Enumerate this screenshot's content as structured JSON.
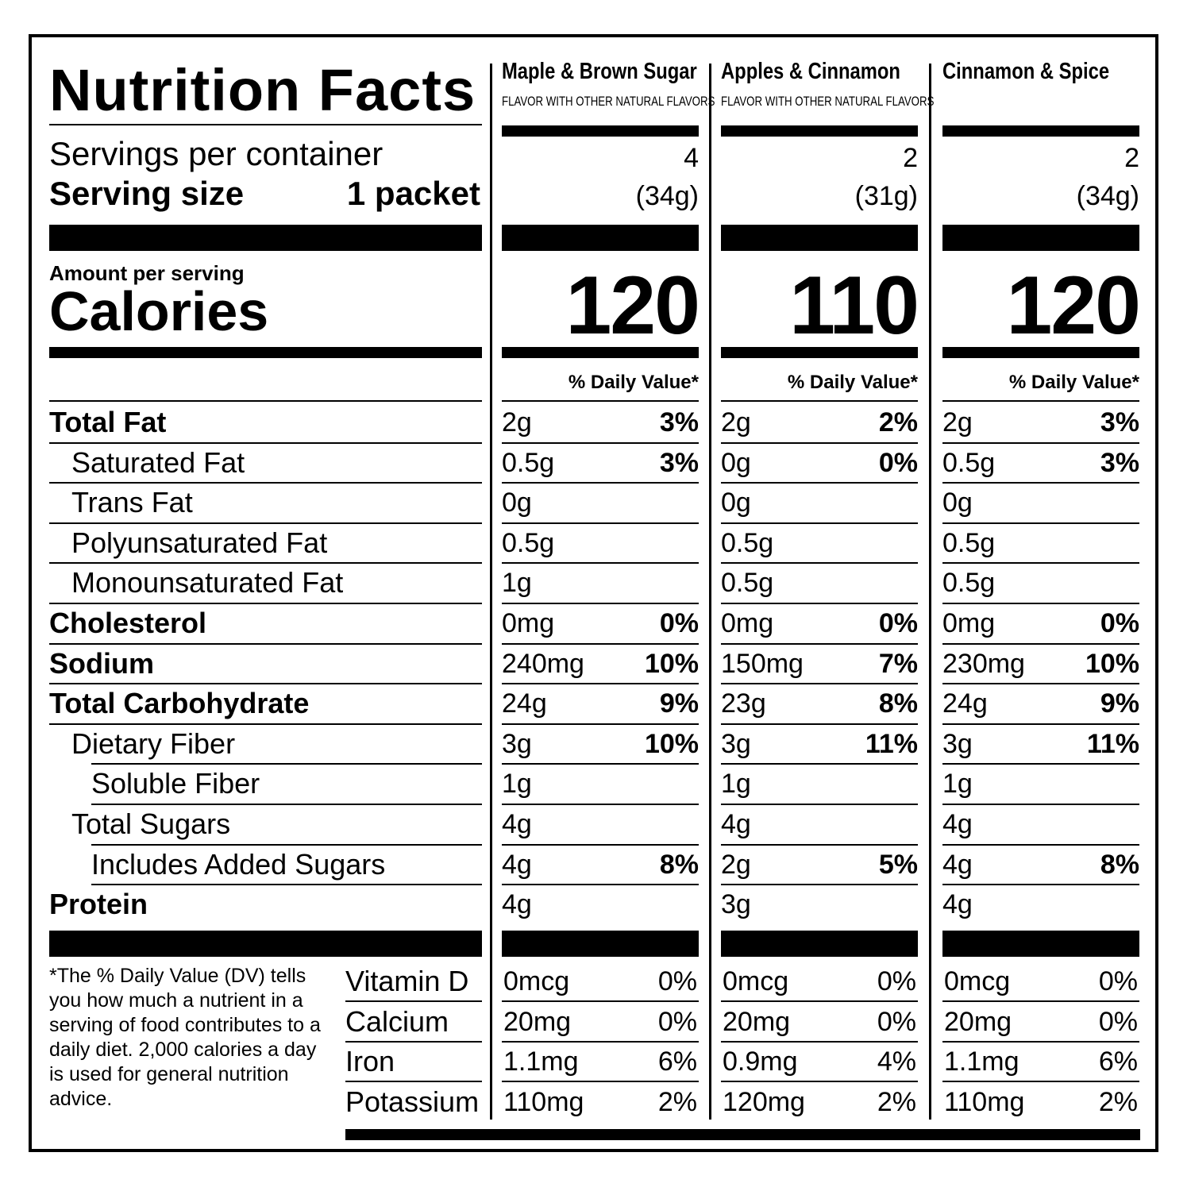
{
  "title": "Nutrition Facts",
  "servings_per_container_label": "Servings per container",
  "serving_size_label": "Serving size",
  "serving_size_value": "1 packet",
  "amount_per_serving_label": "Amount per serving",
  "calories_label": "Calories",
  "dv_header": "% Daily Value*",
  "columns": [
    {
      "name": "Maple & Brown Sugar",
      "sub": "FLAVOR WITH OTHER NATURAL FLAVORS",
      "servings": "4",
      "serving_weight": "(34g)",
      "calories": "120",
      "rows": [
        [
          "2g",
          "3%"
        ],
        [
          "0.5g",
          "3%"
        ],
        [
          "0g",
          ""
        ],
        [
          "0.5g",
          ""
        ],
        [
          "1g",
          ""
        ],
        [
          "0mg",
          "0%"
        ],
        [
          "240mg",
          "10%"
        ],
        [
          "24g",
          "9%"
        ],
        [
          "3g",
          "10%"
        ],
        [
          "1g",
          ""
        ],
        [
          "4g",
          ""
        ],
        [
          "4g",
          "8%"
        ],
        [
          "4g",
          ""
        ]
      ],
      "vitamins": [
        [
          "0mcg",
          "0%"
        ],
        [
          "20mg",
          "0%"
        ],
        [
          "1.1mg",
          "6%"
        ],
        [
          "110mg",
          "2%"
        ]
      ]
    },
    {
      "name": "Apples & Cinnamon",
      "sub": "FLAVOR WITH OTHER NATURAL FLAVORS",
      "servings": "2",
      "serving_weight": "(31g)",
      "calories": "110",
      "rows": [
        [
          "2g",
          "2%"
        ],
        [
          "0g",
          "0%"
        ],
        [
          "0g",
          ""
        ],
        [
          "0.5g",
          ""
        ],
        [
          "0.5g",
          ""
        ],
        [
          "0mg",
          "0%"
        ],
        [
          "150mg",
          "7%"
        ],
        [
          "23g",
          "8%"
        ],
        [
          "3g",
          "11%"
        ],
        [
          "1g",
          ""
        ],
        [
          "4g",
          ""
        ],
        [
          "2g",
          "5%"
        ],
        [
          "3g",
          ""
        ]
      ],
      "vitamins": [
        [
          "0mcg",
          "0%"
        ],
        [
          "20mg",
          "0%"
        ],
        [
          "0.9mg",
          "4%"
        ],
        [
          "120mg",
          "2%"
        ]
      ]
    },
    {
      "name": "Cinnamon & Spice",
      "sub": "",
      "servings": "2",
      "serving_weight": "(34g)",
      "calories": "120",
      "rows": [
        [
          "2g",
          "3%"
        ],
        [
          "0.5g",
          "3%"
        ],
        [
          "0g",
          ""
        ],
        [
          "0.5g",
          ""
        ],
        [
          "0.5g",
          ""
        ],
        [
          "0mg",
          "0%"
        ],
        [
          "230mg",
          "10%"
        ],
        [
          "24g",
          "9%"
        ],
        [
          "3g",
          "11%"
        ],
        [
          "1g",
          ""
        ],
        [
          "4g",
          ""
        ],
        [
          "4g",
          "8%"
        ],
        [
          "4g",
          ""
        ]
      ],
      "vitamins": [
        [
          "0mcg",
          "0%"
        ],
        [
          "20mg",
          "0%"
        ],
        [
          "1.1mg",
          "6%"
        ],
        [
          "110mg",
          "2%"
        ]
      ]
    }
  ],
  "nutrients": [
    {
      "label": "Total Fat",
      "bold": true,
      "indent": 0
    },
    {
      "label": "Saturated Fat",
      "bold": false,
      "indent": 1
    },
    {
      "label": "Trans Fat",
      "bold": false,
      "indent": 1
    },
    {
      "label": "Polyunsaturated Fat",
      "bold": false,
      "indent": 1
    },
    {
      "label": "Monounsaturated Fat",
      "bold": false,
      "indent": 1
    },
    {
      "label": "Cholesterol",
      "bold": true,
      "indent": 0
    },
    {
      "label": "Sodium",
      "bold": true,
      "indent": 0
    },
    {
      "label": "Total Carbohydrate",
      "bold": true,
      "indent": 0
    },
    {
      "label": "Dietary Fiber",
      "bold": false,
      "indent": 1
    },
    {
      "label": "Soluble Fiber",
      "bold": false,
      "indent": 2
    },
    {
      "label": "Total Sugars",
      "bold": false,
      "indent": 1
    },
    {
      "label": "Includes Added Sugars",
      "bold": false,
      "indent": 2
    },
    {
      "label": "Protein",
      "bold": true,
      "indent": 0
    }
  ],
  "vitamin_labels": [
    "Vitamin D",
    "Calcium",
    "Iron",
    "Potassium"
  ],
  "footnote": "*The % Daily Value (DV) tells you how much a nutrient in a serving of food contributes to a daily diet. 2,000 calories a day is used for general nutrition advice."
}
